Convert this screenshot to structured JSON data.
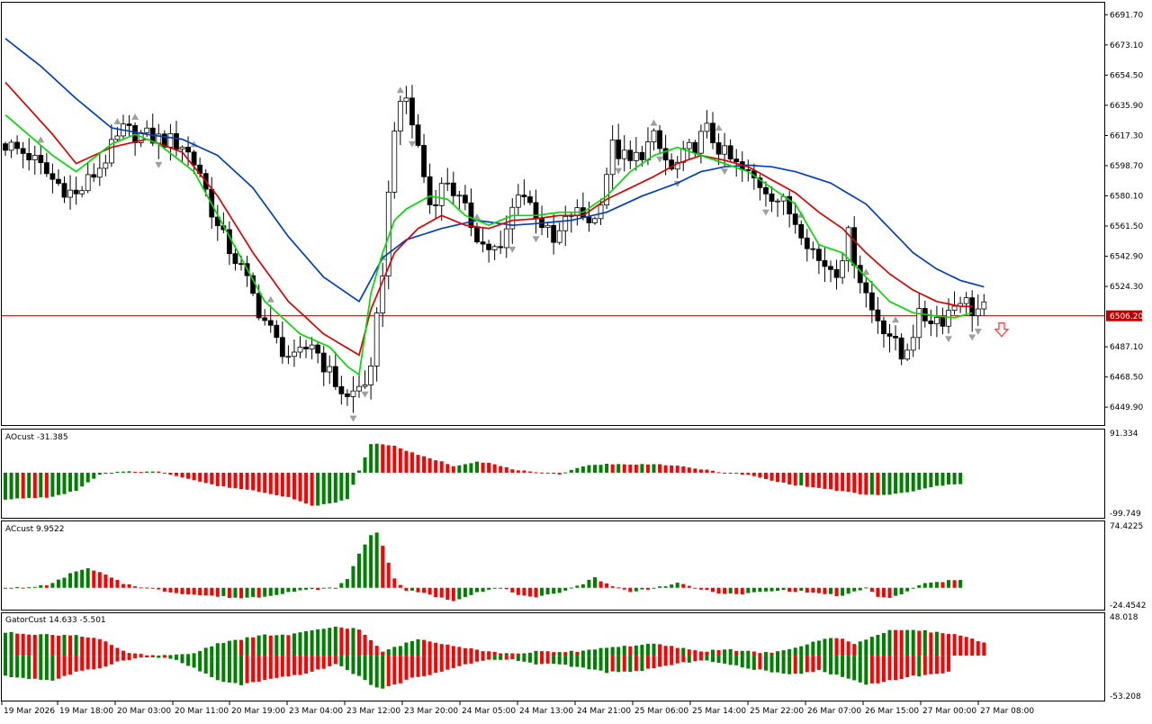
{
  "colors": {
    "background": "#ffffff",
    "frame": "#000000",
    "bull_candle": "#ffffff",
    "bear_candle": "#000000",
    "ma_fast": "#00dd00",
    "ma_mid": "#e00000",
    "ma_slow": "#0040c0",
    "bid_line": "#c00000",
    "bid_label_bg": "#c00000",
    "hist_up": "#008000",
    "hist_down": "#ff0000",
    "fractal": "#a0a0a0",
    "sell_arrow": "#ff4040"
  },
  "main": {
    "price_axis_labels": [
      "6691.70",
      "6673.10",
      "6654.50",
      "6635.90",
      "6617.30",
      "6598.70",
      "6580.10",
      "6561.50",
      "6542.90",
      "6524.30",
      "6487.10",
      "6468.50",
      "6449.90"
    ],
    "current_price": "6506.20",
    "sell_arrow_icon": "down-arrow-icon"
  },
  "ao_pane": {
    "label": "AOcust -31.385",
    "max_label": "91.334",
    "min_label": "-99.749"
  },
  "ac_pane": {
    "label": "ACcust 9.9522",
    "max_label": "74.4225",
    "min_label": "-24.4542"
  },
  "gator_pane": {
    "label": "GatorCust 14.633 -5.501",
    "max_label": "48.018",
    "min_label": "-53.208"
  },
  "time_axis": [
    "19 Mar 2026",
    "19 Mar 18:00",
    "20 Mar 03:00",
    "20 Mar 11:00",
    "20 Mar 19:00",
    "23 Mar 04:00",
    "23 Mar 12:00",
    "23 Mar 20:00",
    "24 Mar 05:00",
    "24 Mar 13:00",
    "24 Mar 21:00",
    "25 Mar 06:00",
    "25 Mar 14:00",
    "25 Mar 22:00",
    "26 Mar 07:00",
    "26 Mar 15:00",
    "27 Mar 00:00",
    "27 Mar 08:00"
  ],
  "chart_data": [
    {
      "type": "candlestick",
      "y_range": [
        6440,
        6698
      ],
      "anchors": [
        [
          0,
          6612
        ],
        [
          4,
          6605
        ],
        [
          8,
          6590
        ],
        [
          12,
          6580
        ],
        [
          16,
          6598
        ],
        [
          20,
          6620
        ],
        [
          26,
          6615
        ],
        [
          30,
          6612
        ],
        [
          33,
          6595
        ],
        [
          36,
          6560
        ],
        [
          40,
          6535
        ],
        [
          43,
          6510
        ],
        [
          46,
          6490
        ],
        [
          49,
          6478
        ],
        [
          52,
          6490
        ],
        [
          55,
          6470
        ],
        [
          58,
          6455
        ],
        [
          62,
          6470
        ],
        [
          64,
          6535
        ],
        [
          66,
          6625
        ],
        [
          68,
          6640
        ],
        [
          70,
          6610
        ],
        [
          72,
          6575
        ],
        [
          75,
          6590
        ],
        [
          78,
          6570
        ],
        [
          81,
          6550
        ],
        [
          84,
          6545
        ],
        [
          87,
          6585
        ],
        [
          90,
          6570
        ],
        [
          93,
          6550
        ],
        [
          96,
          6570
        ],
        [
          100,
          6565
        ],
        [
          103,
          6610
        ],
        [
          106,
          6600
        ],
        [
          110,
          6615
        ],
        [
          113,
          6595
        ],
        [
          116,
          6608
        ],
        [
          119,
          6620
        ],
        [
          122,
          6605
        ],
        [
          125,
          6595
        ],
        [
          129,
          6585
        ],
        [
          132,
          6575
        ],
        [
          135,
          6560
        ],
        [
          138,
          6540
        ],
        [
          141,
          6535
        ],
        [
          143,
          6555
        ],
        [
          145,
          6530
        ],
        [
          147,
          6510
        ],
        [
          150,
          6495
        ],
        [
          152,
          6480
        ],
        [
          155,
          6505
        ],
        [
          159,
          6505
        ],
        [
          162,
          6518
        ],
        [
          164,
          6510
        ]
      ],
      "ma_fast": [
        [
          0,
          6630
        ],
        [
          8,
          6605
        ],
        [
          12,
          6595
        ],
        [
          18,
          6612
        ],
        [
          22,
          6618
        ],
        [
          26,
          6612
        ],
        [
          32,
          6595
        ],
        [
          38,
          6555
        ],
        [
          44,
          6515
        ],
        [
          50,
          6495
        ],
        [
          55,
          6487
        ],
        [
          58,
          6475
        ],
        [
          60,
          6470
        ],
        [
          62,
          6520
        ],
        [
          64,
          6545
        ],
        [
          66,
          6565
        ],
        [
          68,
          6572
        ],
        [
          72,
          6580
        ],
        [
          75,
          6578
        ],
        [
          78,
          6568
        ],
        [
          82,
          6562
        ],
        [
          86,
          6568
        ],
        [
          90,
          6568
        ],
        [
          94,
          6570
        ],
        [
          98,
          6570
        ],
        [
          102,
          6580
        ],
        [
          106,
          6595
        ],
        [
          110,
          6605
        ],
        [
          114,
          6610
        ],
        [
          118,
          6605
        ],
        [
          122,
          6600
        ],
        [
          126,
          6595
        ],
        [
          130,
          6585
        ],
        [
          134,
          6575
        ],
        [
          138,
          6550
        ],
        [
          142,
          6545
        ],
        [
          146,
          6530
        ],
        [
          150,
          6515
        ],
        [
          154,
          6508
        ],
        [
          158,
          6506
        ],
        [
          161,
          6505
        ],
        [
          164,
          6508
        ]
      ],
      "ma_mid": [
        [
          0,
          6650
        ],
        [
          8,
          6618
        ],
        [
          12,
          6600
        ],
        [
          18,
          6610
        ],
        [
          24,
          6615
        ],
        [
          30,
          6607
        ],
        [
          36,
          6580
        ],
        [
          42,
          6545
        ],
        [
          48,
          6515
        ],
        [
          54,
          6495
        ],
        [
          60,
          6482
        ],
        [
          62,
          6510
        ],
        [
          66,
          6545
        ],
        [
          70,
          6560
        ],
        [
          74,
          6568
        ],
        [
          78,
          6562
        ],
        [
          82,
          6560
        ],
        [
          86,
          6565
        ],
        [
          90,
          6566
        ],
        [
          94,
          6568
        ],
        [
          98,
          6568
        ],
        [
          102,
          6578
        ],
        [
          106,
          6585
        ],
        [
          110,
          6592
        ],
        [
          114,
          6600
        ],
        [
          118,
          6605
        ],
        [
          122,
          6602
        ],
        [
          126,
          6598
        ],
        [
          130,
          6590
        ],
        [
          134,
          6582
        ],
        [
          138,
          6570
        ],
        [
          142,
          6560
        ],
        [
          146,
          6545
        ],
        [
          150,
          6532
        ],
        [
          154,
          6522
        ],
        [
          158,
          6515
        ],
        [
          162,
          6512
        ],
        [
          164,
          6512
        ]
      ],
      "ma_slow": [
        [
          0,
          6677
        ],
        [
          6,
          6660
        ],
        [
          12,
          6640
        ],
        [
          18,
          6622
        ],
        [
          24,
          6618
        ],
        [
          30,
          6615
        ],
        [
          36,
          6605
        ],
        [
          42,
          6585
        ],
        [
          48,
          6555
        ],
        [
          54,
          6530
        ],
        [
          60,
          6515
        ],
        [
          64,
          6542
        ],
        [
          68,
          6553
        ],
        [
          74,
          6560
        ],
        [
          80,
          6565
        ],
        [
          86,
          6562
        ],
        [
          90,
          6563
        ],
        [
          96,
          6565
        ],
        [
          102,
          6570
        ],
        [
          108,
          6580
        ],
        [
          114,
          6588
        ],
        [
          118,
          6595
        ],
        [
          122,
          6598
        ],
        [
          126,
          6599
        ],
        [
          130,
          6598
        ],
        [
          134,
          6595
        ],
        [
          140,
          6588
        ],
        [
          146,
          6575
        ],
        [
          150,
          6560
        ],
        [
          154,
          6545
        ],
        [
          158,
          6535
        ],
        [
          162,
          6528
        ],
        [
          166,
          6524
        ]
      ]
    },
    {
      "type": "histogram",
      "name": "AOcust",
      "y_range": [
        -99.749,
        91.334
      ],
      "anchors": [
        [
          0,
          -60
        ],
        [
          8,
          -55
        ],
        [
          12,
          -40
        ],
        [
          16,
          -5
        ],
        [
          20,
          3
        ],
        [
          26,
          2
        ],
        [
          30,
          -10
        ],
        [
          36,
          -30
        ],
        [
          42,
          -40
        ],
        [
          48,
          -55
        ],
        [
          52,
          -75
        ],
        [
          55,
          -70
        ],
        [
          58,
          -60
        ],
        [
          60,
          5
        ],
        [
          62,
          65
        ],
        [
          64,
          65
        ],
        [
          66,
          60
        ],
        [
          70,
          40
        ],
        [
          74,
          25
        ],
        [
          76,
          15
        ],
        [
          80,
          25
        ],
        [
          82,
          22
        ],
        [
          86,
          8
        ],
        [
          90,
          0
        ],
        [
          94,
          -3
        ],
        [
          98,
          15
        ],
        [
          102,
          20
        ],
        [
          106,
          18
        ],
        [
          110,
          20
        ],
        [
          114,
          15
        ],
        [
          118,
          8
        ],
        [
          122,
          0
        ],
        [
          126,
          -5
        ],
        [
          130,
          -18
        ],
        [
          134,
          -28
        ],
        [
          140,
          -38
        ],
        [
          146,
          -50
        ],
        [
          150,
          -50
        ],
        [
          154,
          -42
        ],
        [
          158,
          -30
        ],
        [
          162,
          -25
        ]
      ]
    },
    {
      "type": "histogram",
      "name": "ACcust",
      "y_range": [
        -24.4542,
        74.4225
      ],
      "anchors": [
        [
          0,
          0
        ],
        [
          4,
          0
        ],
        [
          8,
          5
        ],
        [
          12,
          20
        ],
        [
          14,
          22
        ],
        [
          16,
          18
        ],
        [
          20,
          5
        ],
        [
          24,
          0
        ],
        [
          28,
          -5
        ],
        [
          32,
          -8
        ],
        [
          36,
          -10
        ],
        [
          40,
          -12
        ],
        [
          44,
          -10
        ],
        [
          48,
          -5
        ],
        [
          52,
          -2
        ],
        [
          56,
          0
        ],
        [
          58,
          10
        ],
        [
          60,
          40
        ],
        [
          62,
          62
        ],
        [
          63,
          64
        ],
        [
          64,
          50
        ],
        [
          66,
          10
        ],
        [
          68,
          -3
        ],
        [
          72,
          -8
        ],
        [
          74,
          -12
        ],
        [
          76,
          -15
        ],
        [
          80,
          -5
        ],
        [
          84,
          0
        ],
        [
          86,
          -5
        ],
        [
          88,
          -10
        ],
        [
          90,
          -12
        ],
        [
          94,
          -5
        ],
        [
          98,
          5
        ],
        [
          100,
          12
        ],
        [
          102,
          5
        ],
        [
          104,
          0
        ],
        [
          106,
          -5
        ],
        [
          110,
          0
        ],
        [
          114,
          5
        ],
        [
          116,
          2
        ],
        [
          120,
          -5
        ],
        [
          124,
          -8
        ],
        [
          128,
          -5
        ],
        [
          132,
          -3
        ],
        [
          136,
          -5
        ],
        [
          140,
          -8
        ],
        [
          142,
          -10
        ],
        [
          144,
          -5
        ],
        [
          146,
          0
        ],
        [
          148,
          -10
        ],
        [
          150,
          -12
        ],
        [
          152,
          -8
        ],
        [
          154,
          0
        ],
        [
          156,
          5
        ],
        [
          160,
          8
        ],
        [
          162,
          9.95
        ]
      ]
    },
    {
      "type": "histogram",
      "name": "GatorCust",
      "y_range": [
        -53.208,
        48.018
      ],
      "upper": [
        [
          0,
          28
        ],
        [
          8,
          25
        ],
        [
          12,
          25
        ],
        [
          16,
          20
        ],
        [
          20,
          5
        ],
        [
          24,
          0
        ],
        [
          28,
          0
        ],
        [
          32,
          3
        ],
        [
          36,
          15
        ],
        [
          40,
          20
        ],
        [
          44,
          25
        ],
        [
          48,
          25
        ],
        [
          52,
          30
        ],
        [
          56,
          35
        ],
        [
          60,
          32
        ],
        [
          62,
          18
        ],
        [
          64,
          5
        ],
        [
          66,
          10
        ],
        [
          70,
          20
        ],
        [
          74,
          15
        ],
        [
          78,
          10
        ],
        [
          82,
          5
        ],
        [
          86,
          2
        ],
        [
          90,
          5
        ],
        [
          94,
          4
        ],
        [
          98,
          6
        ],
        [
          102,
          10
        ],
        [
          106,
          12
        ],
        [
          110,
          14
        ],
        [
          114,
          10
        ],
        [
          118,
          5
        ],
        [
          122,
          8
        ],
        [
          126,
          5
        ],
        [
          130,
          3
        ],
        [
          134,
          10
        ],
        [
          138,
          18
        ],
        [
          140,
          22
        ],
        [
          142,
          20
        ],
        [
          144,
          15
        ],
        [
          146,
          20
        ],
        [
          150,
          30
        ],
        [
          154,
          32
        ],
        [
          158,
          28
        ],
        [
          162,
          25
        ],
        [
          166,
          15
        ]
      ],
      "lower": [
        [
          0,
          -25
        ],
        [
          8,
          -30
        ],
        [
          12,
          -20
        ],
        [
          16,
          -15
        ],
        [
          20,
          -5
        ],
        [
          24,
          -2
        ],
        [
          28,
          -3
        ],
        [
          32,
          -15
        ],
        [
          36,
          -30
        ],
        [
          40,
          -35
        ],
        [
          44,
          -30
        ],
        [
          48,
          -25
        ],
        [
          52,
          -20
        ],
        [
          56,
          -10
        ],
        [
          60,
          -25
        ],
        [
          62,
          -35
        ],
        [
          64,
          -40
        ],
        [
          66,
          -35
        ],
        [
          70,
          -25
        ],
        [
          74,
          -20
        ],
        [
          78,
          -10
        ],
        [
          82,
          -5
        ],
        [
          86,
          -5
        ],
        [
          90,
          -10
        ],
        [
          94,
          -10
        ],
        [
          98,
          -15
        ],
        [
          102,
          -20
        ],
        [
          106,
          -20
        ],
        [
          110,
          -15
        ],
        [
          114,
          -10
        ],
        [
          118,
          -5
        ],
        [
          122,
          -10
        ],
        [
          126,
          -15
        ],
        [
          130,
          -20
        ],
        [
          134,
          -22
        ],
        [
          138,
          -18
        ],
        [
          140,
          -22
        ],
        [
          142,
          -25
        ],
        [
          144,
          -30
        ],
        [
          146,
          -35
        ],
        [
          150,
          -30
        ],
        [
          154,
          -25
        ],
        [
          158,
          -22
        ],
        [
          160,
          -20
        ]
      ]
    }
  ]
}
